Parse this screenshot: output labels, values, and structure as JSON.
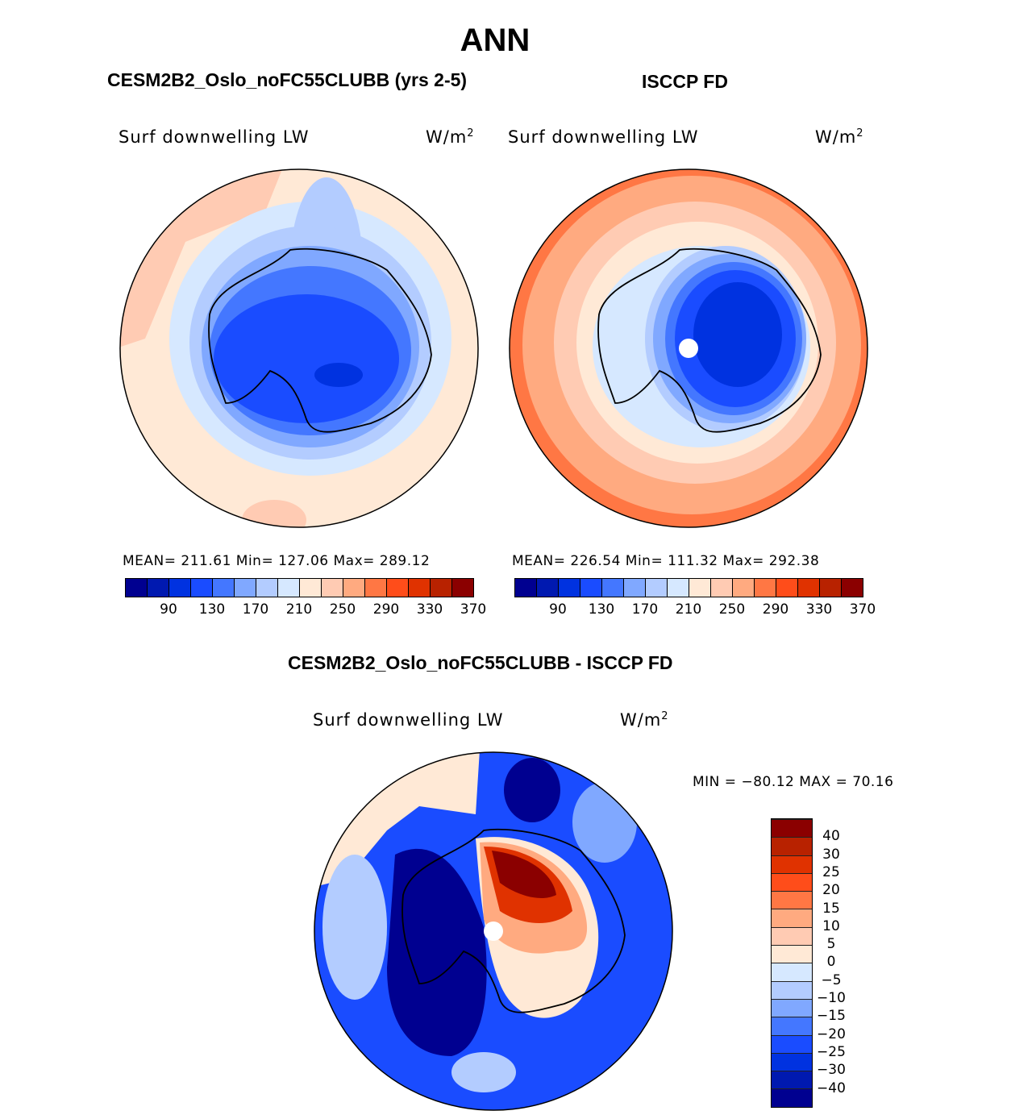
{
  "figure": {
    "title": "ANN"
  },
  "panels": [
    {
      "title": "CESM2B2_Oslo_noFC55CLUBB (yrs 2-5)",
      "variable": "Surf downwelling LW",
      "units_base": "W/m",
      "units_exp": "2",
      "stats": "MEAN= 211.61   Min= 127.06   Max= 289.12"
    },
    {
      "title": "ISCCP FD",
      "variable": "Surf downwelling LW",
      "units_base": "W/m",
      "units_exp": "2",
      "stats": "MEAN= 226.54   Min= 111.32   Max= 292.38"
    },
    {
      "title": "CESM2B2_Oslo_noFC55CLUBB - ISCCP FD",
      "variable": "Surf downwelling LW",
      "units_base": "W/m",
      "units_exp": "2",
      "stats": "MIN = −80.12 MAX =   70.16"
    }
  ],
  "colorbar_main": {
    "labels": [
      "90",
      "130",
      "170",
      "210",
      "250",
      "290",
      "330",
      "370"
    ],
    "colors": [
      "#000090",
      "#0019b0",
      "#0032e0",
      "#1a4cff",
      "#4477ff",
      "#80a8ff",
      "#b3ccff",
      "#d6e8ff",
      "#ffe9d6",
      "#ffcbb3",
      "#ffaa80",
      "#ff7744",
      "#ff4d1a",
      "#e03200",
      "#b82200",
      "#8b0000"
    ]
  },
  "colorbar_diff": {
    "labels": [
      "−40",
      "−30",
      "−25",
      "−20",
      "−15",
      "−10",
      "−5",
      "0",
      "5",
      "10",
      "15",
      "20",
      "25",
      "30",
      "40"
    ],
    "colors": [
      "#000090",
      "#0019b0",
      "#0032e0",
      "#1a4cff",
      "#4477ff",
      "#80a8ff",
      "#b3ccff",
      "#d6e8ff",
      "#ffe9d6",
      "#ffcbb3",
      "#ffaa80",
      "#ff7744",
      "#ff4d1a",
      "#e03200",
      "#b82200",
      "#8b0000"
    ]
  }
}
